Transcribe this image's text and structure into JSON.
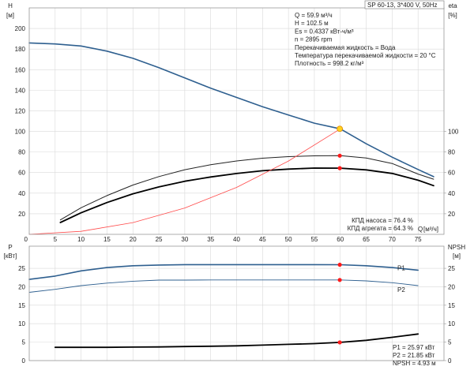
{
  "chart_data": [
    {
      "type": "line",
      "panel": "performance",
      "title_box": "SP 60-13, 3*400 V, 50Hz",
      "left_axis": {
        "label": "H",
        "unit": "[м]",
        "ylim": [
          0,
          220
        ],
        "ticks": [
          20,
          40,
          60,
          80,
          100,
          120,
          140,
          160,
          180,
          200
        ]
      },
      "right_axis": {
        "label": "eta",
        "unit": "[%]",
        "ylim": [
          0,
          220
        ],
        "ticks": [
          20,
          40,
          60,
          80,
          100
        ]
      },
      "x_axis": {
        "label": "Q",
        "unit": "[м³/ч]",
        "xlim": [
          0,
          80
        ],
        "ticks": [
          0,
          5,
          10,
          15,
          20,
          25,
          30,
          35,
          40,
          45,
          50,
          55,
          60,
          65,
          70,
          75
        ]
      },
      "grid": true,
      "info_lines": [
        "Q = 59.9 м³/ч",
        "H = 102.5 м",
        "Es = 0.4337 кВт-ч/м³",
        "n = 2895 rpm",
        "Перекачиваемая жидкость = Вода",
        "Температура перекачиваемой жидкости = 20 °C",
        "Плотность = 998.2 кг/м³"
      ],
      "bottom_labels": [
        "КПД насоса = 76.4 %",
        "КПД агрегата = 64.3 %"
      ],
      "series": [
        {
          "role": "head",
          "color": "#2e5f8f",
          "width": 1.6,
          "x": [
            0,
            5,
            10,
            15,
            20,
            25,
            30,
            35,
            40,
            45,
            50,
            55,
            60,
            65,
            70,
            75,
            78
          ],
          "y": [
            186,
            185,
            183,
            178,
            171,
            162,
            152,
            142,
            133,
            124,
            116,
            108,
            102.5,
            88,
            75,
            63,
            56
          ]
        },
        {
          "role": "eta-pump",
          "color": "#222222",
          "width": 1.0,
          "x": [
            6,
            10,
            15,
            20,
            25,
            30,
            35,
            40,
            45,
            50,
            55,
            60,
            65,
            70,
            75,
            78
          ],
          "y": [
            14,
            25.8,
            37.6,
            47.9,
            56.1,
            62.8,
            67.6,
            71.3,
            74,
            75.5,
            76.3,
            76.4,
            74.1,
            68.8,
            58.6,
            53.6
          ]
        },
        {
          "role": "eta-unit",
          "color": "#000000",
          "width": 1.8,
          "x": [
            6,
            10,
            15,
            20,
            25,
            30,
            35,
            40,
            45,
            50,
            55,
            60,
            65,
            70,
            75,
            78
          ],
          "y": [
            11.5,
            20.9,
            30.9,
            39.4,
            46.1,
            51.6,
            55.7,
            59.1,
            61.8,
            63.4,
            64.4,
            64.3,
            62.6,
            59.2,
            52.6,
            47.3
          ]
        },
        {
          "role": "system",
          "color": "#ff4b4b",
          "width": 0.8,
          "x": [
            0,
            10,
            20,
            30,
            40,
            50,
            60
          ],
          "y": [
            0,
            2.9,
            11.4,
            25.6,
            45.6,
            71.2,
            102.5
          ]
        }
      ],
      "points": [
        {
          "x": 59.9,
          "y": 102.5,
          "color": "#ffd21f",
          "stroke": "#e08a00",
          "r": 3.5
        },
        {
          "x": 59.9,
          "y": 76.4,
          "color": "#ff1a1a",
          "stroke": "#ff1a1a",
          "r": 2.2
        },
        {
          "x": 59.9,
          "y": 64.3,
          "color": "#ff1a1a",
          "stroke": "#ff1a1a",
          "r": 2.2
        }
      ]
    },
    {
      "type": "line",
      "panel": "power",
      "left_axis": {
        "label": "P",
        "unit": "[кВт]",
        "ylim": [
          0,
          31
        ],
        "ticks": [
          0,
          5,
          10,
          15,
          20,
          25
        ]
      },
      "right_axis": {
        "label": "NPSH",
        "unit": "[м]",
        "ylim": [
          0,
          31
        ],
        "ticks": [
          0,
          5,
          10,
          15,
          20,
          25
        ]
      },
      "x_axis": {
        "xlim": [
          0,
          80
        ],
        "ticks": [
          0,
          5,
          10,
          15,
          20,
          25,
          30,
          35,
          40,
          45,
          50,
          55,
          60,
          65,
          70,
          75
        ]
      },
      "grid": true,
      "bottom_labels": [
        "P1 = 25.97 кВт",
        "P2 = 21.85 кВт",
        "NPSH = 4.93 м"
      ],
      "series": [
        {
          "role": "P1",
          "name": "P1",
          "color": "#2e5f8f",
          "width": 1.6,
          "x": [
            0,
            5,
            10,
            15,
            20,
            25,
            30,
            35,
            40,
            45,
            50,
            55,
            60,
            65,
            70,
            75
          ],
          "y": [
            22,
            22.9,
            24.3,
            25.2,
            25.7,
            25.9,
            26,
            26,
            26,
            26,
            26,
            26,
            25.97,
            25.7,
            25.2,
            24.5
          ]
        },
        {
          "role": "P2",
          "name": "P2",
          "color": "#2e5f8f",
          "width": 0.9,
          "x": [
            0,
            5,
            10,
            15,
            20,
            25,
            30,
            35,
            40,
            45,
            50,
            55,
            60,
            65,
            70,
            75
          ],
          "y": [
            18.5,
            19.3,
            20.3,
            21,
            21.5,
            21.8,
            21.8,
            21.85,
            21.85,
            21.85,
            21.85,
            21.85,
            21.85,
            21.6,
            21.1,
            20.3
          ]
        },
        {
          "role": "NPSH",
          "color": "#000000",
          "width": 1.8,
          "x": [
            5,
            10,
            15,
            20,
            25,
            30,
            35,
            40,
            45,
            50,
            55,
            60,
            65,
            70,
            75
          ],
          "y": [
            3.6,
            3.6,
            3.6,
            3.65,
            3.7,
            3.8,
            3.9,
            4.0,
            4.2,
            4.4,
            4.6,
            4.93,
            5.5,
            6.3,
            7.2
          ]
        }
      ],
      "points": [
        {
          "x": 59.9,
          "y": 25.97,
          "color": "#ff1a1a",
          "stroke": "#ff1a1a",
          "r": 2.2
        },
        {
          "x": 59.9,
          "y": 21.85,
          "color": "#ff1a1a",
          "stroke": "#ff1a1a",
          "r": 2.2
        },
        {
          "x": 59.9,
          "y": 4.93,
          "color": "#ff1a1a",
          "stroke": "#ff1a1a",
          "r": 2.2
        }
      ]
    }
  ]
}
